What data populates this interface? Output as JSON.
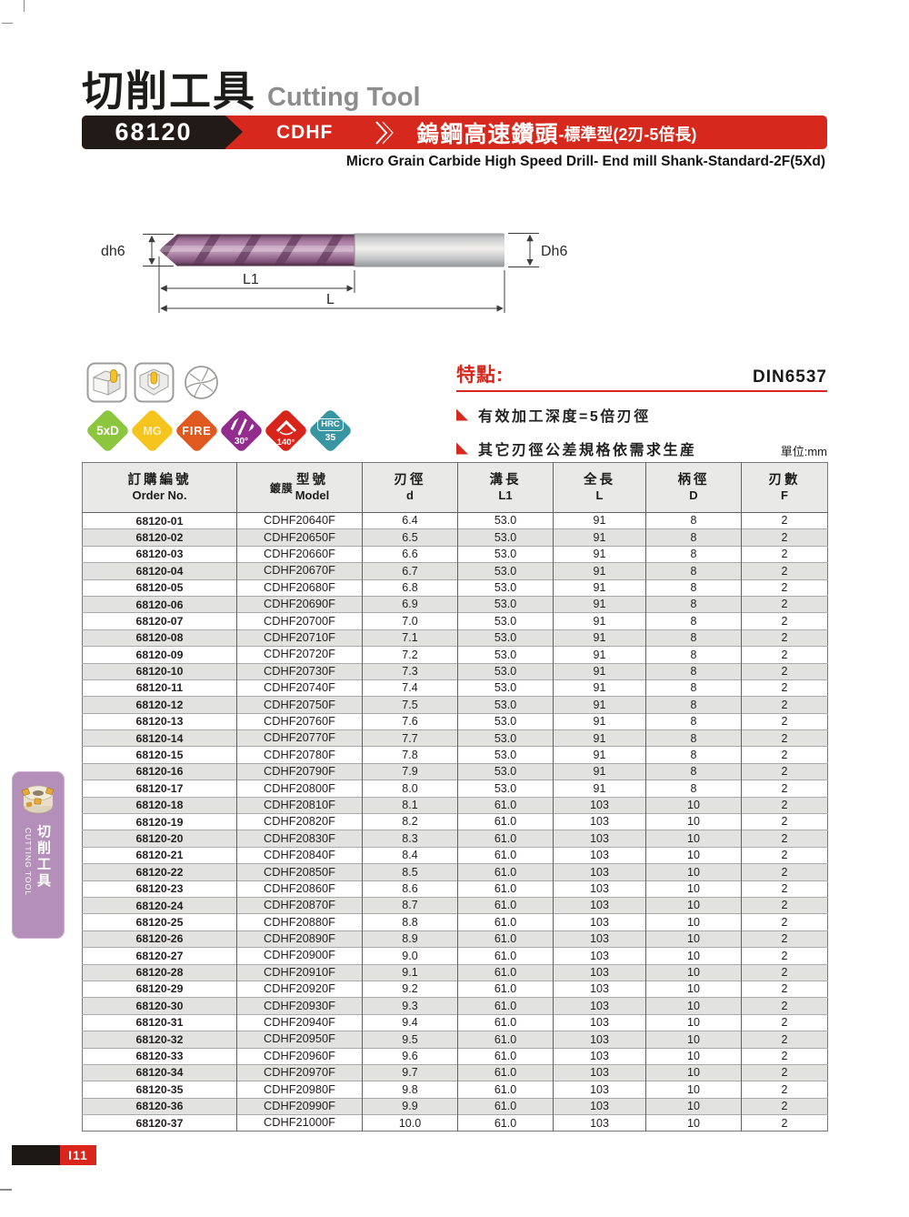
{
  "page": {
    "title_zh": "切削工具",
    "title_en": "Cutting Tool",
    "unit_label": "單位:mm",
    "page_number": "I11"
  },
  "banner": {
    "code": "68120",
    "series": "CDHF",
    "title_zh": "鎢鋼高速鑽頭",
    "title_zh_sub": "-標準型(2刃-5倍長)",
    "subtitle_en": "Micro Grain Carbide High Speed Drill- End mill Shank-Standard-2F(5Xd)",
    "red": "#d6281c",
    "black": "#221a16"
  },
  "diagram": {
    "label_flute_dia": "dh6",
    "label_shank_dia": "Dh6",
    "label_flute_length": "L1",
    "label_total_length": "L"
  },
  "icons": {
    "top": [
      "through-hole-drilling",
      "blind-hole-drilling",
      "drill-point-geometry"
    ]
  },
  "badges": [
    {
      "label": "5xD",
      "color": "#8cc63e"
    },
    {
      "label": "MG",
      "color": "#f6c51d"
    },
    {
      "label": "FIRE",
      "color": "#e05a20"
    },
    {
      "label": "30°",
      "color": "#922d8e"
    },
    {
      "label": "140°",
      "color": "#d8251c"
    },
    {
      "label": "HRC",
      "sub": "35",
      "color": "#3995a2"
    }
  ],
  "features": {
    "heading": "特點:",
    "standard": "DIN6537",
    "items": [
      "有效加工深度=5倍刃徑",
      "其它刃徑公差規格依需求生産"
    ]
  },
  "table": {
    "headers": [
      {
        "zh": "訂購編號",
        "en": "Order No."
      },
      {
        "prefix": "鍍膜",
        "zh": "型號",
        "en": "Model"
      },
      {
        "zh": "刃徑",
        "en": "d"
      },
      {
        "zh": "溝長",
        "en": "L1"
      },
      {
        "zh": "全長",
        "en": "L"
      },
      {
        "zh": "柄徑",
        "en": "D"
      },
      {
        "zh": "刃數",
        "en": "F"
      }
    ],
    "col_keys": [
      "order-no",
      "model",
      "d",
      "l1",
      "l",
      "shank-d",
      "flutes"
    ],
    "rows": [
      [
        "68120-01",
        "CDHF20640F",
        "6.4",
        "53.0",
        "91",
        "8",
        "2"
      ],
      [
        "68120-02",
        "CDHF20650F",
        "6.5",
        "53.0",
        "91",
        "8",
        "2"
      ],
      [
        "68120-03",
        "CDHF20660F",
        "6.6",
        "53.0",
        "91",
        "8",
        "2"
      ],
      [
        "68120-04",
        "CDHF20670F",
        "6.7",
        "53.0",
        "91",
        "8",
        "2"
      ],
      [
        "68120-05",
        "CDHF20680F",
        "6.8",
        "53.0",
        "91",
        "8",
        "2"
      ],
      [
        "68120-06",
        "CDHF20690F",
        "6.9",
        "53.0",
        "91",
        "8",
        "2"
      ],
      [
        "68120-07",
        "CDHF20700F",
        "7.0",
        "53.0",
        "91",
        "8",
        "2"
      ],
      [
        "68120-08",
        "CDHF20710F",
        "7.1",
        "53.0",
        "91",
        "8",
        "2"
      ],
      [
        "68120-09",
        "CDHF20720F",
        "7.2",
        "53.0",
        "91",
        "8",
        "2"
      ],
      [
        "68120-10",
        "CDHF20730F",
        "7.3",
        "53.0",
        "91",
        "8",
        "2"
      ],
      [
        "68120-11",
        "CDHF20740F",
        "7.4",
        "53.0",
        "91",
        "8",
        "2"
      ],
      [
        "68120-12",
        "CDHF20750F",
        "7.5",
        "53.0",
        "91",
        "8",
        "2"
      ],
      [
        "68120-13",
        "CDHF20760F",
        "7.6",
        "53.0",
        "91",
        "8",
        "2"
      ],
      [
        "68120-14",
        "CDHF20770F",
        "7.7",
        "53.0",
        "91",
        "8",
        "2"
      ],
      [
        "68120-15",
        "CDHF20780F",
        "7.8",
        "53.0",
        "91",
        "8",
        "2"
      ],
      [
        "68120-16",
        "CDHF20790F",
        "7.9",
        "53.0",
        "91",
        "8",
        "2"
      ],
      [
        "68120-17",
        "CDHF20800F",
        "8.0",
        "53.0",
        "91",
        "8",
        "2"
      ],
      [
        "68120-18",
        "CDHF20810F",
        "8.1",
        "61.0",
        "103",
        "10",
        "2"
      ],
      [
        "68120-19",
        "CDHF20820F",
        "8.2",
        "61.0",
        "103",
        "10",
        "2"
      ],
      [
        "68120-20",
        "CDHF20830F",
        "8.3",
        "61.0",
        "103",
        "10",
        "2"
      ],
      [
        "68120-21",
        "CDHF20840F",
        "8.4",
        "61.0",
        "103",
        "10",
        "2"
      ],
      [
        "68120-22",
        "CDHF20850F",
        "8.5",
        "61.0",
        "103",
        "10",
        "2"
      ],
      [
        "68120-23",
        "CDHF20860F",
        "8.6",
        "61.0",
        "103",
        "10",
        "2"
      ],
      [
        "68120-24",
        "CDHF20870F",
        "8.7",
        "61.0",
        "103",
        "10",
        "2"
      ],
      [
        "68120-25",
        "CDHF20880F",
        "8.8",
        "61.0",
        "103",
        "10",
        "2"
      ],
      [
        "68120-26",
        "CDHF20890F",
        "8.9",
        "61.0",
        "103",
        "10",
        "2"
      ],
      [
        "68120-27",
        "CDHF20900F",
        "9.0",
        "61.0",
        "103",
        "10",
        "2"
      ],
      [
        "68120-28",
        "CDHF20910F",
        "9.1",
        "61.0",
        "103",
        "10",
        "2"
      ],
      [
        "68120-29",
        "CDHF20920F",
        "9.2",
        "61.0",
        "103",
        "10",
        "2"
      ],
      [
        "68120-30",
        "CDHF20930F",
        "9.3",
        "61.0",
        "103",
        "10",
        "2"
      ],
      [
        "68120-31",
        "CDHF20940F",
        "9.4",
        "61.0",
        "103",
        "10",
        "2"
      ],
      [
        "68120-32",
        "CDHF20950F",
        "9.5",
        "61.0",
        "103",
        "10",
        "2"
      ],
      [
        "68120-33",
        "CDHF20960F",
        "9.6",
        "61.0",
        "103",
        "10",
        "2"
      ],
      [
        "68120-34",
        "CDHF20970F",
        "9.7",
        "61.0",
        "103",
        "10",
        "2"
      ],
      [
        "68120-35",
        "CDHF20980F",
        "9.8",
        "61.0",
        "103",
        "10",
        "2"
      ],
      [
        "68120-36",
        "CDHF20990F",
        "9.9",
        "61.0",
        "103",
        "10",
        "2"
      ],
      [
        "68120-37",
        "CDHF21000F",
        "10.0",
        "61.0",
        "103",
        "10",
        "2"
      ]
    ]
  },
  "sidebar": {
    "tab_zh": "切削工具",
    "tab_en": "CUTTING TOOL",
    "color": "#b48fba"
  },
  "footer": {
    "page_number": "I11"
  }
}
